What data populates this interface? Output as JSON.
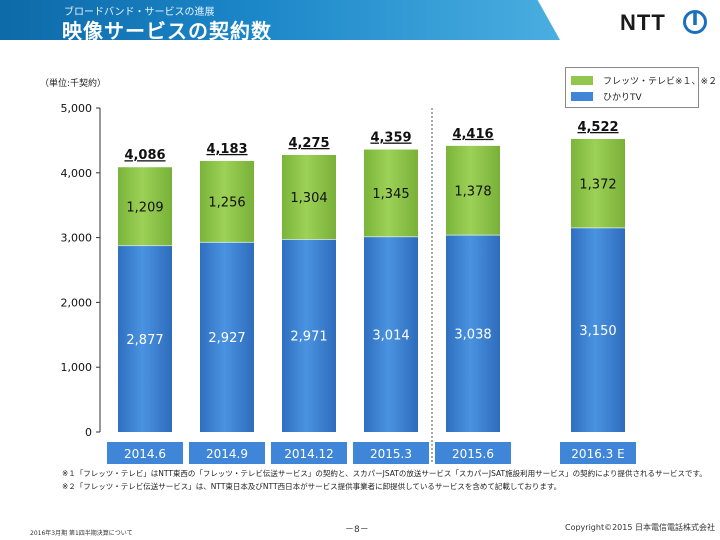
{
  "header": {
    "subtitle": "ブロードバンド・サービスの進展",
    "title": "映像サービスの契約数",
    "logo_text": "NTT"
  },
  "unit_label": "（単位:千契約）",
  "legend": {
    "flets_tv": "フレッツ・テレビ※１、※２",
    "hikari_tv": "ひかりTV"
  },
  "colors": {
    "hikari_tv": "#3f86d8",
    "flets_tv": "#92c74e",
    "category_box": "#3f86d8",
    "header": "#1b86c8"
  },
  "chart_data": {
    "type": "bar",
    "stacked": true,
    "categories": [
      "2014.6",
      "2014.9",
      "2014.12",
      "2015.3",
      "2015.6",
      "2016.3 E"
    ],
    "series": [
      {
        "name": "ひかりTV",
        "values": [
          2877,
          2927,
          2971,
          3014,
          3038,
          3150
        ]
      },
      {
        "name": "フレッツ・テレビ",
        "values": [
          1209,
          1256,
          1304,
          1345,
          1378,
          1372
        ]
      }
    ],
    "value_labels": {
      "hikari_tv": [
        "2,877",
        "2,927",
        "2,971",
        "3,014",
        "3,038",
        "3,150"
      ],
      "flets_tv": [
        "1,209",
        "1,256",
        "1,304",
        "1,345",
        "1,378",
        "1,372"
      ],
      "totals": [
        "4,086",
        "4,183",
        "4,275",
        "4,359",
        "4,416",
        "4,522"
      ]
    },
    "ylim": [
      0,
      5000
    ],
    "yticks": [
      0,
      1000,
      2000,
      3000,
      4000,
      5000
    ],
    "ytick_labels": [
      "0",
      "1,000",
      "2,000",
      "3,000",
      "4,000",
      "5,000"
    ],
    "grid": false,
    "legend_position": "top-right",
    "divider_after_category": "2015.3"
  },
  "footnotes": [
    "※１「フレッツ・テレビ」はNTT東西の「フレッツ・テレビ伝送サービス」の契約と、スカパーJSATの放送サービス「スカパーJSAT施設利用サービス」の契約により提供されるサービスです。",
    "※２「フレッツ・テレビ伝送サービス」は、NTT東日本及びNTT西日本がサービス提供事業者に卸提供しているサービスを含めて記載しております。"
  ],
  "footer": {
    "left": "2016年3月期 第1四半期決算について",
    "page": "－8－",
    "copyright": "Copyright©2015 日本電信電話株式会社"
  }
}
